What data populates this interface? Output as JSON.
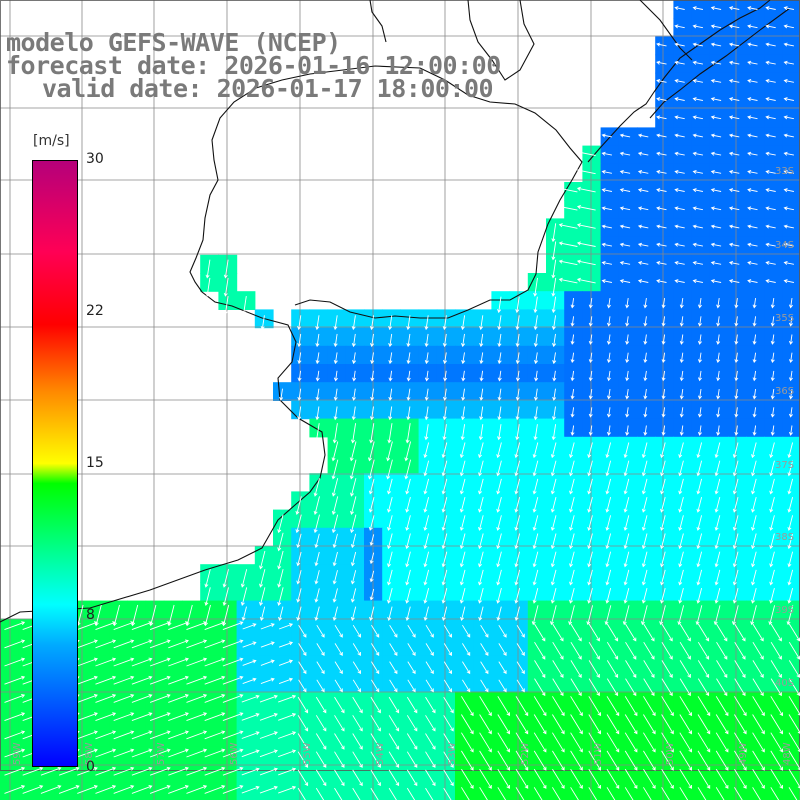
{
  "titles": {
    "model": "modelo GEFS-WAVE (NCEP)",
    "forecast": "forecast date: 2026-01-16 12:00:00",
    "valid": "valid date: 2026-01-17 18:00:00"
  },
  "colorbar": {
    "unit": "[m/s]",
    "ticks": [
      "30",
      "22",
      "15",
      "8",
      "0"
    ],
    "min": 0,
    "max": 30,
    "stops": [
      {
        "value": 0,
        "color": "#0000ff"
      },
      {
        "value": 6,
        "color": "#00aaff"
      },
      {
        "value": 8,
        "color": "#00ffff"
      },
      {
        "value": 14,
        "color": "#00ff00"
      },
      {
        "value": 15,
        "color": "#ffff00"
      },
      {
        "value": 22,
        "color": "#ff0000"
      },
      {
        "value": 30,
        "color": "#b5007a"
      }
    ]
  },
  "map": {
    "lon_range": [
      -59,
      -48
    ],
    "lat_range": [
      -41,
      -30
    ],
    "lat_labels": [
      "33S",
      "34S",
      "35S",
      "36S",
      "37S",
      "38S",
      "39S",
      "40S"
    ],
    "lon_labels": [
      "59W",
      "58W",
      "57W",
      "56W",
      "55W",
      "54W",
      "53W",
      "52W",
      "51W",
      "50W",
      "49W",
      "48W"
    ]
  }
}
